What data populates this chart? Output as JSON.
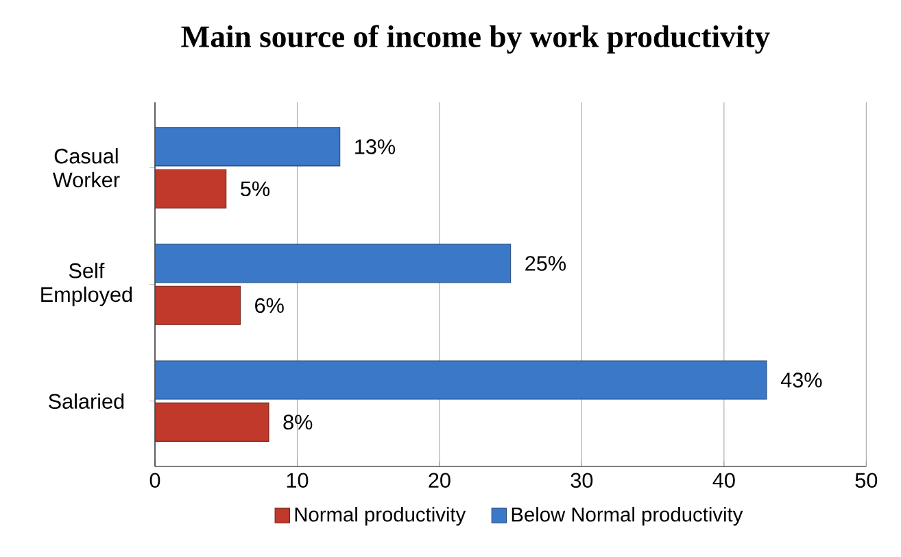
{
  "chart_data": {
    "type": "bar",
    "orientation": "horizontal",
    "title": "Main source of income by work productivity",
    "categories": [
      "Casual Worker",
      "Self Employed",
      "Salaried"
    ],
    "series": [
      {
        "name": "Normal productivity",
        "color": "#c0392b",
        "values": [
          5,
          6,
          8
        ],
        "value_labels": [
          "5%",
          "6%",
          "8%"
        ]
      },
      {
        "name": "Below Normal productivity",
        "color": "#3c78c8",
        "values": [
          13,
          25,
          43
        ],
        "value_labels": [
          "13%",
          "25%",
          "43%"
        ]
      }
    ],
    "xlim": [
      0,
      50
    ],
    "xticks": [
      0,
      10,
      20,
      30,
      40,
      50
    ],
    "grid": "x",
    "legend": "bottom"
  }
}
